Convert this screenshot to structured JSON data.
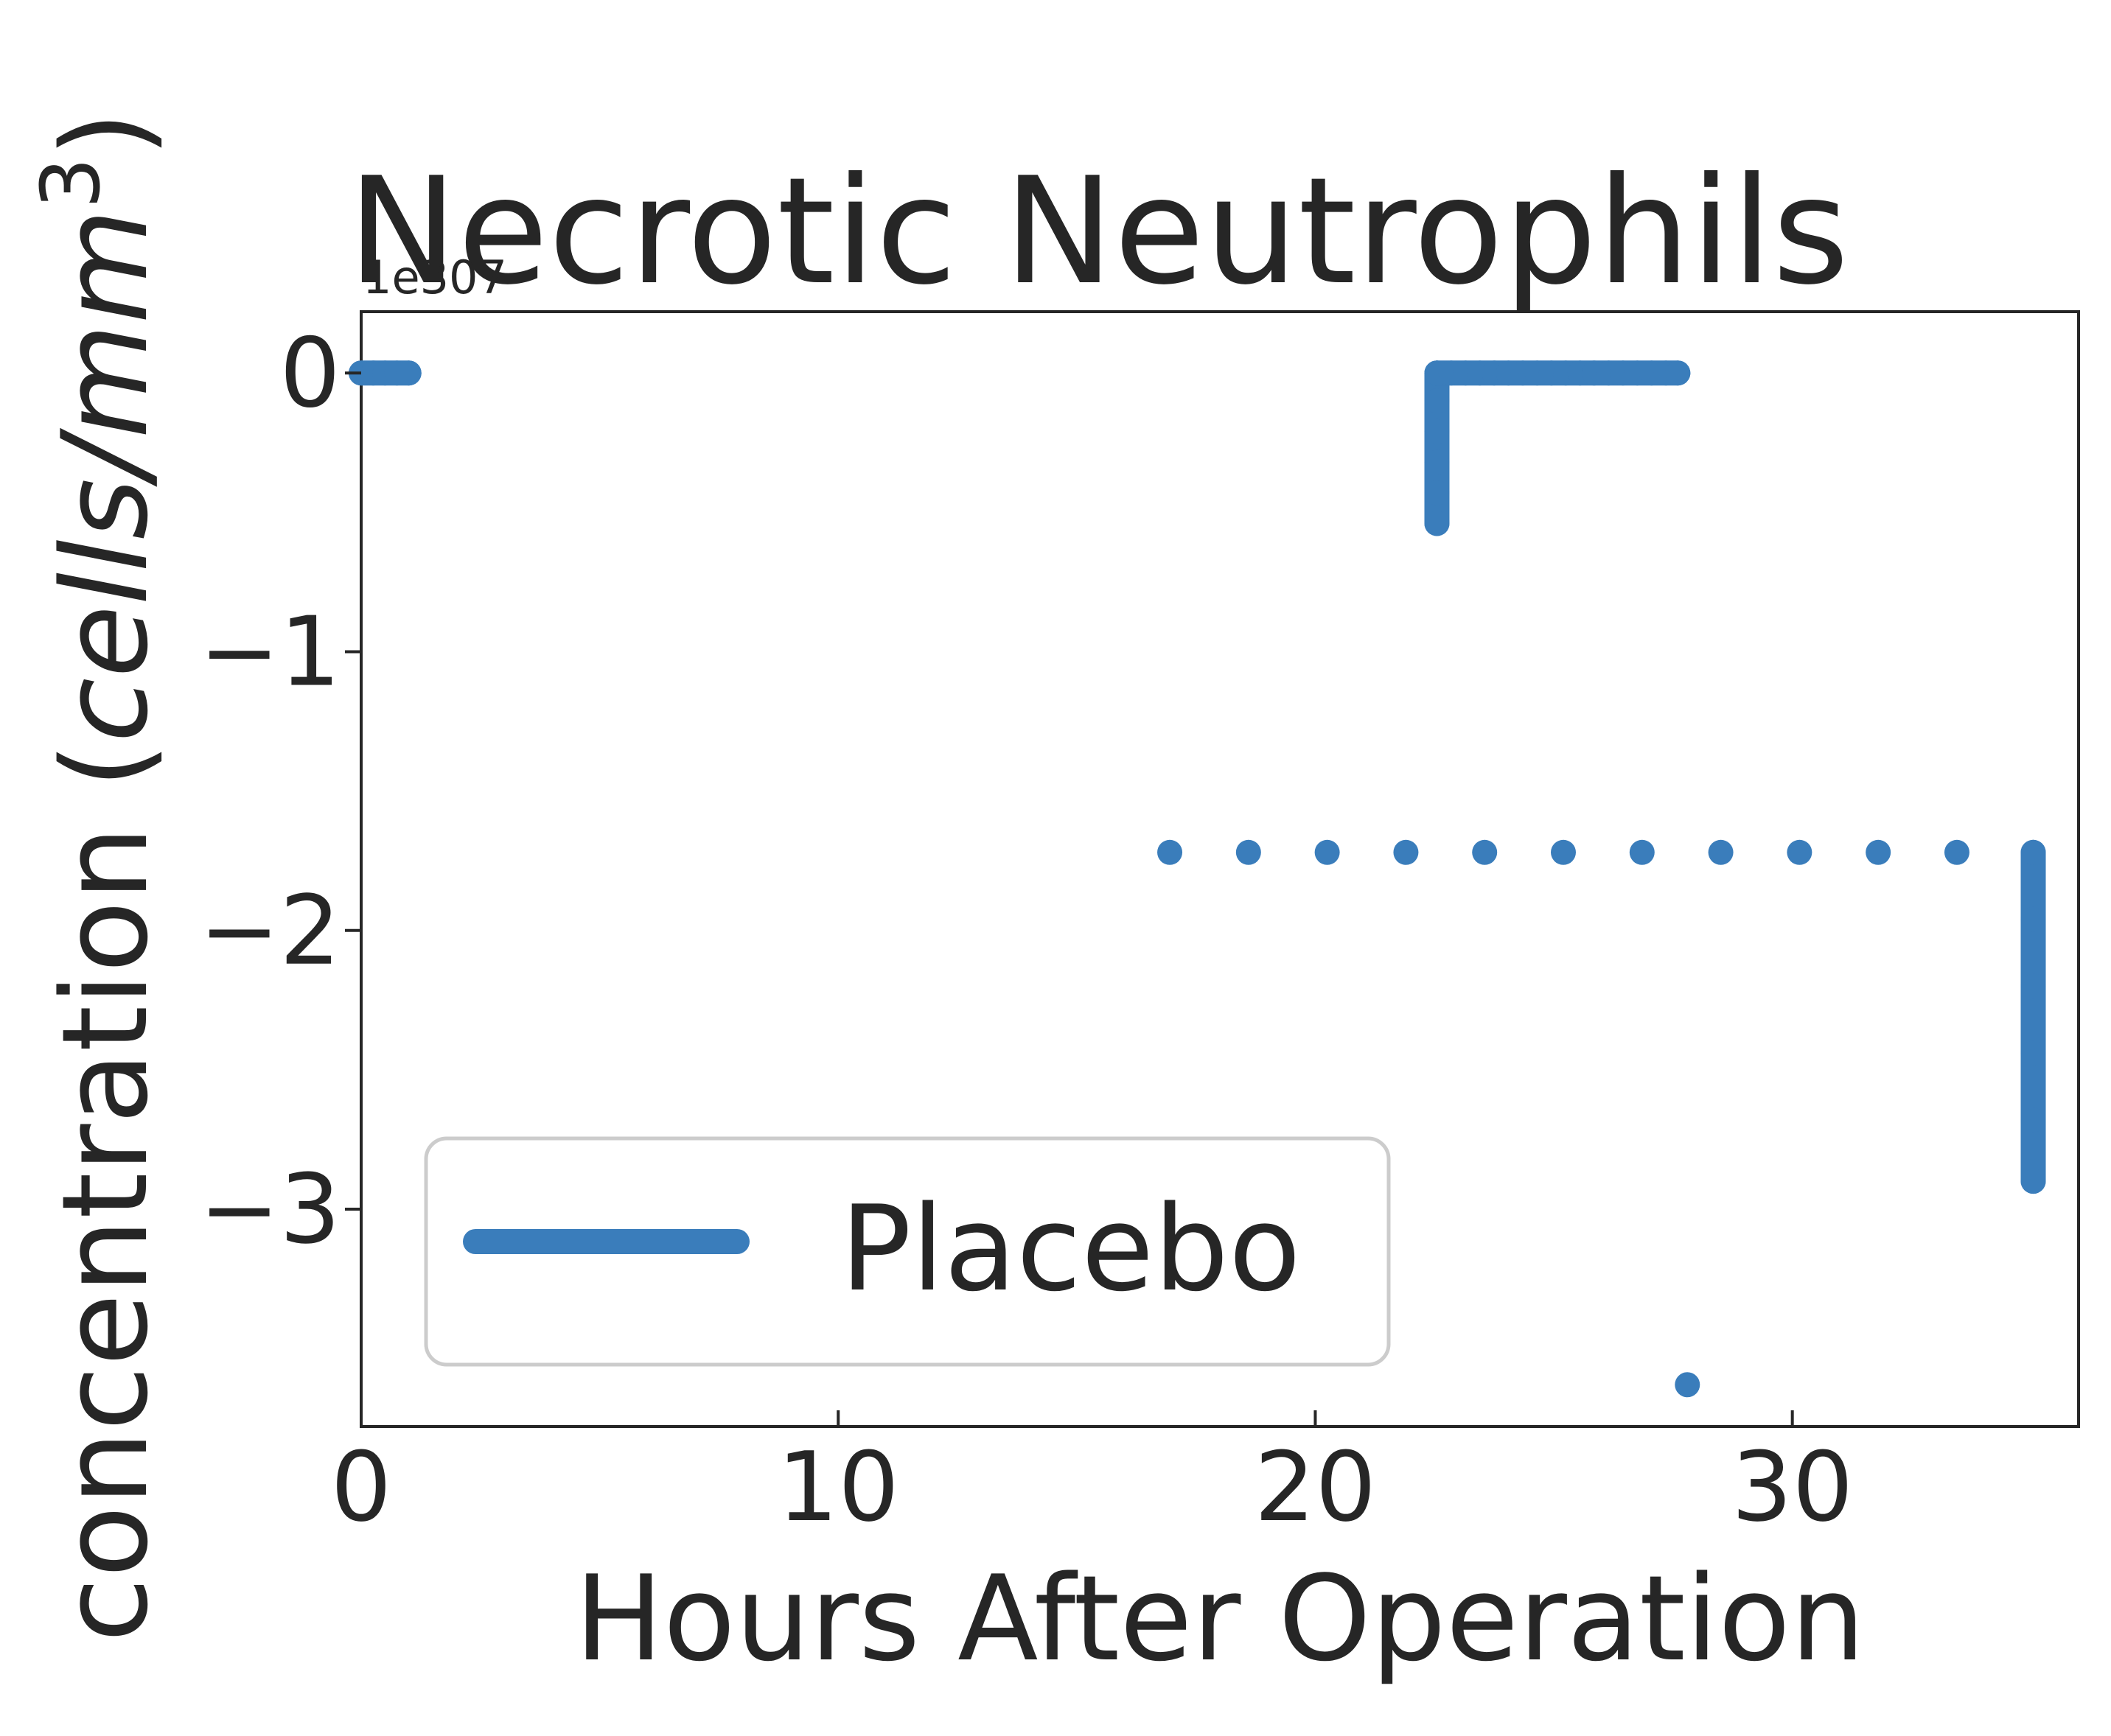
{
  "chart_data": {
    "type": "line",
    "title": "Necrotic Neutrophils",
    "xlabel": "Hours After Operation",
    "ylabel_main": "concentration (",
    "ylabel_unit": "cells/mm",
    "ylabel_sup": "3",
    "ylabel_close": ")",
    "offset_text": "1e307",
    "xlim": [
      0,
      36
    ],
    "ylim": [
      -3.78,
      0.22
    ],
    "x_ticks": [
      0,
      10,
      20,
      30
    ],
    "x_tick_labels": [
      "0",
      "10",
      "20",
      "30"
    ],
    "y_ticks": [
      0,
      -1,
      -2,
      -3
    ],
    "y_tick_labels": [
      "0",
      "−1",
      "−2",
      "−3"
    ],
    "grid": false,
    "legend_position": "lower-left",
    "series": [
      {
        "name": "Placebo",
        "color": "#3a7dbb",
        "segments": [
          {
            "x": [
              0.0,
              0.25,
              0.5,
              0.75,
              1.0
            ],
            "y": [
              0,
              0,
              0,
              0,
              0
            ]
          },
          {
            "x": [
              22.55,
              22.55,
              22.55,
              22.55,
              22.55,
              22.55
            ],
            "y": [
              -0.54,
              -0.43,
              -0.32,
              -0.21,
              -0.1,
              0.0
            ]
          },
          {
            "x": [
              22.55,
              22.85,
              23.15,
              23.45,
              23.75,
              24.05,
              24.35,
              24.65,
              24.95,
              25.25,
              25.55,
              25.85,
              26.15,
              26.45,
              26.75,
              27.05,
              27.35,
              27.6
            ],
            "y": [
              0,
              0,
              0,
              0,
              0,
              0,
              0,
              0,
              0,
              0,
              0,
              0,
              0,
              0,
              0,
              0,
              0,
              0
            ]
          },
          {
            "x": [
              35.05,
              35.05,
              35.05,
              35.05,
              35.05,
              35.05
            ],
            "y": [
              -1.72,
              -1.96,
              -2.2,
              -2.44,
              -2.68,
              -2.9
            ]
          }
        ],
        "points": [
          {
            "x": 16.95,
            "y": -1.72
          },
          {
            "x": 18.6,
            "y": -1.72
          },
          {
            "x": 20.25,
            "y": -1.72
          },
          {
            "x": 21.9,
            "y": -1.72
          },
          {
            "x": 23.55,
            "y": -1.72
          },
          {
            "x": 25.2,
            "y": -1.72
          },
          {
            "x": 26.85,
            "y": -1.72
          },
          {
            "x": 28.5,
            "y": -1.72
          },
          {
            "x": 30.15,
            "y": -1.72
          },
          {
            "x": 31.8,
            "y": -1.72
          },
          {
            "x": 33.45,
            "y": -1.72
          },
          {
            "x": 27.8,
            "y": -3.63
          }
        ]
      }
    ]
  }
}
